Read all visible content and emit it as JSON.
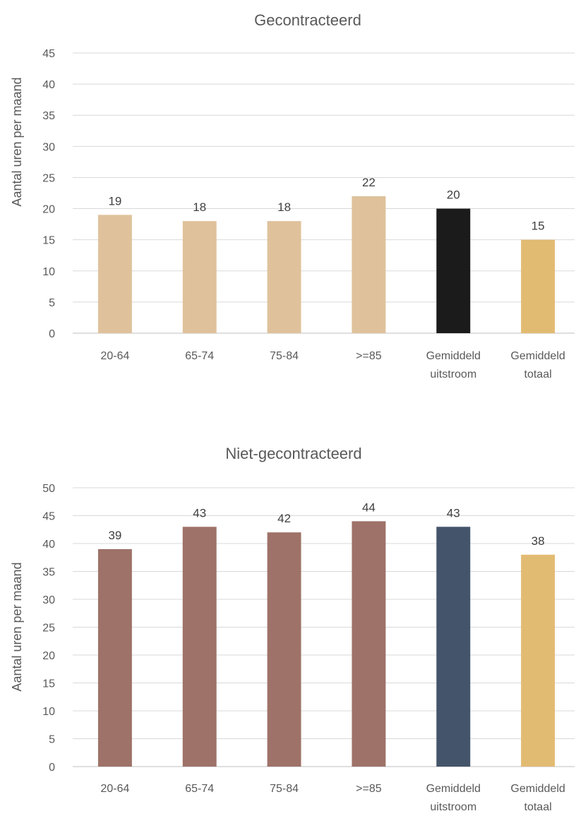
{
  "chart_data": [
    {
      "type": "bar",
      "title": "Gecontracteerd",
      "xlabel": "",
      "ylabel": "Aantal uren per maand",
      "ylim": [
        0,
        45
      ],
      "yticks": [
        0,
        5,
        10,
        15,
        20,
        25,
        30,
        35,
        40,
        45
      ],
      "grid": true,
      "categories": [
        [
          "20-64"
        ],
        [
          "65-74"
        ],
        [
          "75-84"
        ],
        [
          ">=85"
        ],
        [
          "Gemiddeld",
          "uitstroom"
        ],
        [
          "Gemiddeld",
          "totaal"
        ]
      ],
      "values": [
        19,
        18,
        18,
        22,
        20,
        15
      ],
      "colors": [
        "#dfc29c",
        "#dfc29c",
        "#dfc29c",
        "#dfc29c",
        "#1b1b1b",
        "#e2bb72"
      ]
    },
    {
      "type": "bar",
      "title": "Niet-gecontracteerd",
      "xlabel": "",
      "ylabel": "Aantal uren per maand",
      "ylim": [
        0,
        50
      ],
      "yticks": [
        0,
        5,
        10,
        15,
        20,
        25,
        30,
        35,
        40,
        45,
        50
      ],
      "grid": true,
      "categories": [
        [
          "20-64"
        ],
        [
          "65-74"
        ],
        [
          "75-84"
        ],
        [
          ">=85"
        ],
        [
          "Gemiddeld",
          "uitstroom"
        ],
        [
          "Gemiddeld",
          "totaal"
        ]
      ],
      "values": [
        39,
        43,
        42,
        44,
        43,
        38
      ],
      "colors": [
        "#9e7268",
        "#9e7268",
        "#9e7268",
        "#9e7268",
        "#44546a",
        "#e2bb72"
      ]
    }
  ]
}
